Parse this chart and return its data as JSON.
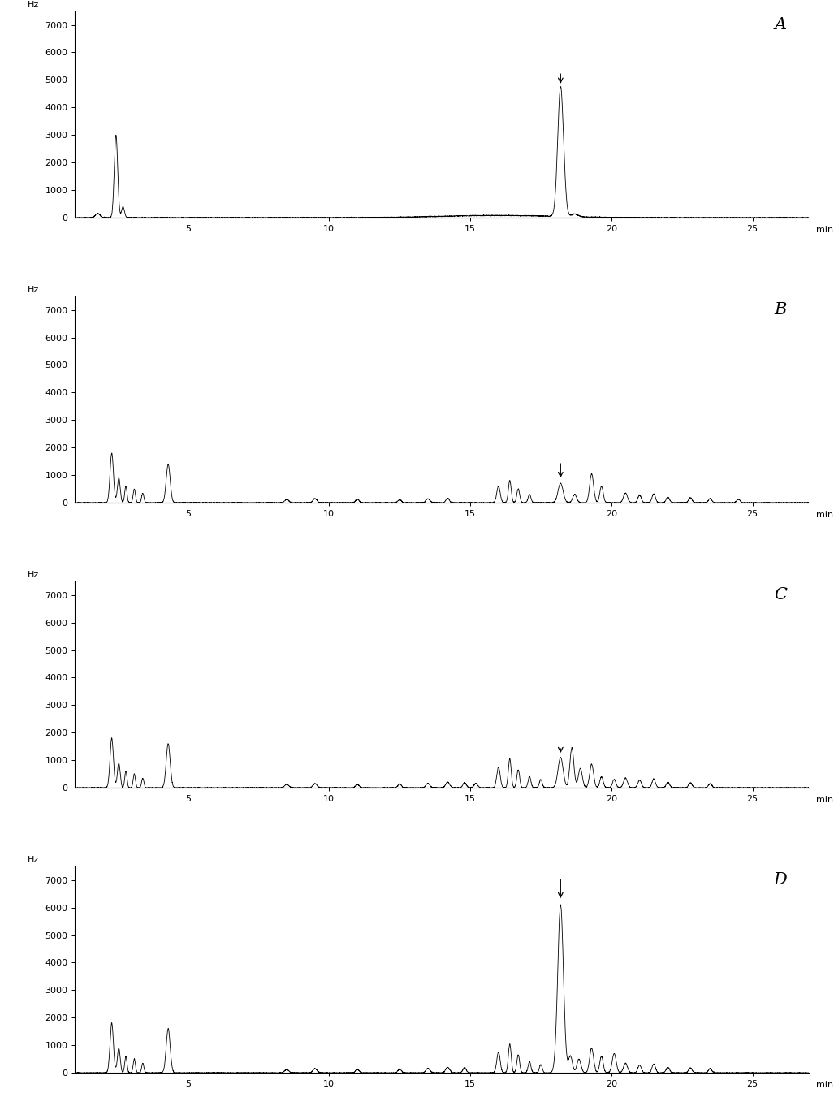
{
  "n_panels": 4,
  "panel_labels": [
    "A",
    "B",
    "C",
    "D"
  ],
  "ylabel": "Hz",
  "xlabel": "min",
  "xlim": [
    1,
    27
  ],
  "ylim": [
    0,
    7500
  ],
  "yticks": [
    0,
    1000,
    2000,
    3000,
    4000,
    5000,
    6000,
    7000
  ],
  "xticks": [
    5,
    10,
    15,
    20,
    25
  ],
  "background_color": "#ffffff",
  "line_color": "#000000",
  "figsize": [
    10.27,
    13.62
  ],
  "dpi": 100
}
